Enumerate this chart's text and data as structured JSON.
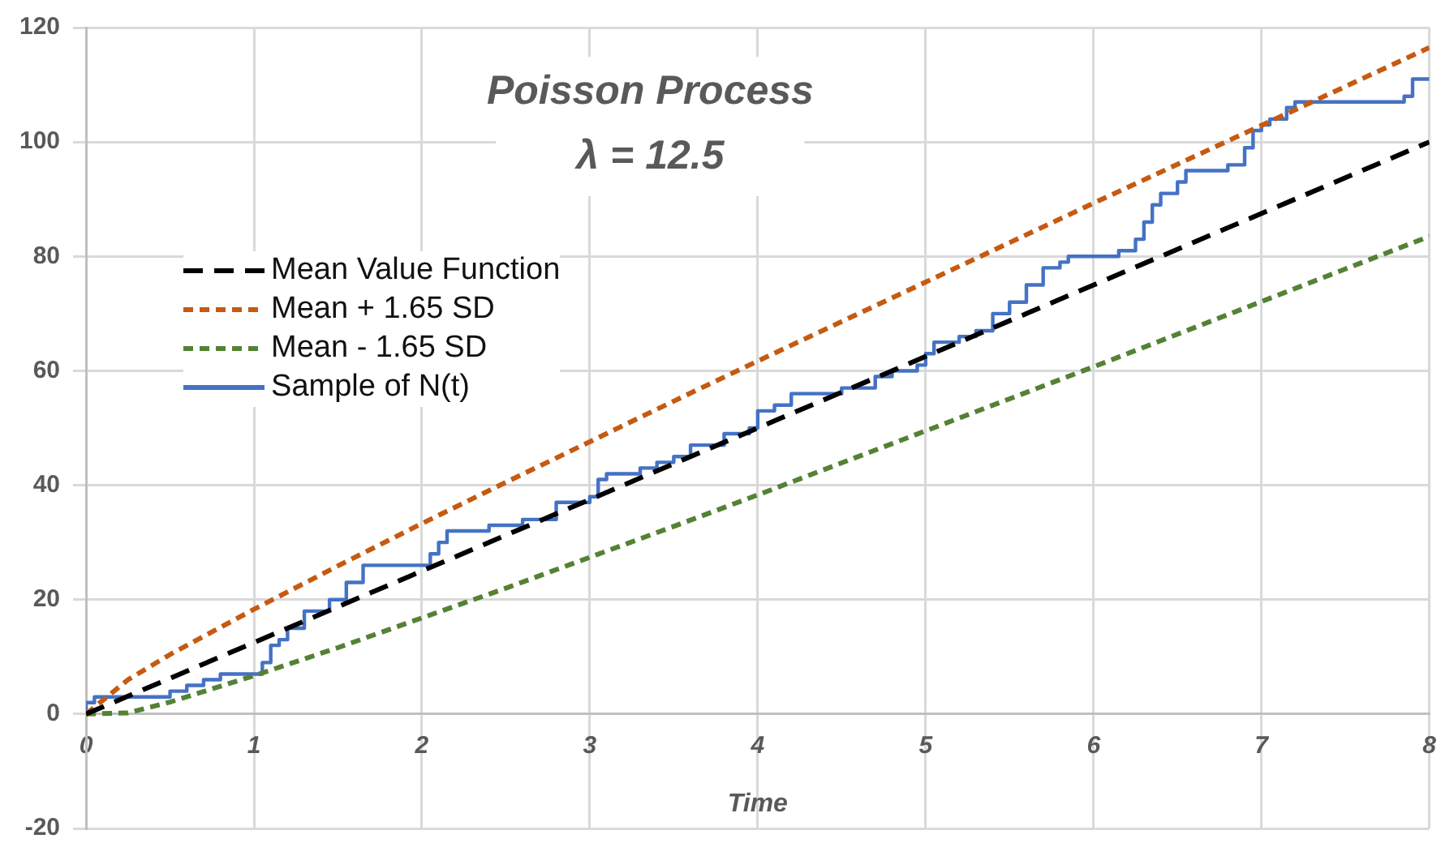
{
  "chart_data": {
    "type": "line",
    "title": "Poisson Process",
    "subtitle": "λ = 12.5",
    "xlabel": "Time",
    "xlim": [
      0,
      8
    ],
    "xticks": [
      0,
      1,
      2,
      3,
      4,
      5,
      6,
      7,
      8
    ],
    "ylim": [
      -20,
      120
    ],
    "yticks": [
      -20,
      0,
      20,
      40,
      60,
      80,
      100,
      120
    ],
    "grid": true,
    "legend": "left",
    "marker": "none",
    "series": [
      {
        "name": "Mean Value Function",
        "color": "#000000",
        "line_style": "dashed",
        "x": [
          0,
          8
        ],
        "values": [
          0,
          100
        ]
      },
      {
        "name": "Mean + 1.65 SD",
        "color": "#c55a11",
        "line_style": "dotted",
        "x": [
          0,
          0.25,
          0.5,
          1,
          1.5,
          2,
          2.5,
          3,
          3.5,
          4,
          4.5,
          5,
          5.5,
          6,
          6.5,
          7,
          7.5,
          8
        ],
        "values": [
          0,
          6.0,
          10.4,
          18.3,
          25.9,
          33.3,
          40.5,
          47.6,
          54.7,
          61.7,
          68.6,
          75.5,
          82.4,
          89.3,
          96.1,
          102.9,
          109.7,
          116.5
        ]
      },
      {
        "name": "Mean - 1.65 SD",
        "color": "#548235",
        "line_style": "dotted",
        "x": [
          0,
          0.25,
          0.5,
          1,
          1.5,
          2,
          2.5,
          3,
          3.5,
          4,
          4.5,
          5,
          5.5,
          6,
          6.5,
          7,
          7.5,
          8
        ],
        "values": [
          0,
          0.2,
          2.1,
          6.7,
          11.6,
          16.8,
          22.0,
          27.4,
          32.8,
          38.3,
          43.9,
          49.5,
          55.1,
          60.7,
          66.4,
          72.1,
          77.8,
          83.5
        ]
      },
      {
        "name": "Sample of N(t)",
        "color": "#4472c4",
        "type": "step",
        "line_style": "solid",
        "x": [
          0,
          0.05,
          0.5,
          0.6,
          0.7,
          0.8,
          1.05,
          1.1,
          1.15,
          1.2,
          1.3,
          1.45,
          1.55,
          1.65,
          2.05,
          2.1,
          2.15,
          2.4,
          2.6,
          2.8,
          3.0,
          3.05,
          3.1,
          3.3,
          3.4,
          3.5,
          3.6,
          3.8,
          3.95,
          4.0,
          4.1,
          4.2,
          4.5,
          4.7,
          4.8,
          4.95,
          5.0,
          5.05,
          5.2,
          5.3,
          5.4,
          5.5,
          5.6,
          5.7,
          5.8,
          5.85,
          6.15,
          6.25,
          6.3,
          6.35,
          6.4,
          6.5,
          6.55,
          6.8,
          6.9,
          6.95,
          7.0,
          7.05,
          7.15,
          7.2,
          7.85,
          7.9,
          8.0
        ],
        "values": [
          0,
          2,
          3,
          4,
          5,
          6,
          7,
          9,
          12,
          13,
          15,
          18,
          20,
          23,
          26,
          28,
          30,
          32,
          33,
          34,
          37,
          38,
          41,
          42,
          43,
          44,
          45,
          47,
          49,
          50,
          53,
          54,
          56,
          57,
          59,
          60,
          61,
          63,
          65,
          66,
          67,
          70,
          72,
          75,
          78,
          79,
          80,
          81,
          83,
          86,
          89,
          91,
          93,
          95,
          96,
          99,
          102,
          103,
          104,
          106,
          107,
          108,
          111
        ]
      }
    ]
  }
}
